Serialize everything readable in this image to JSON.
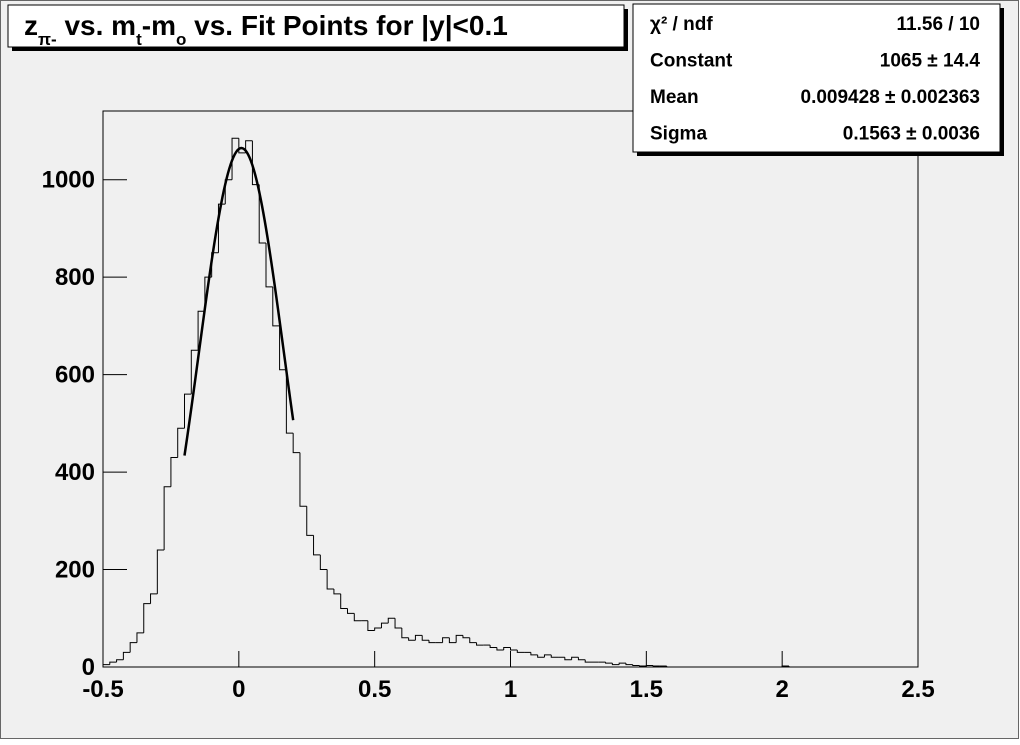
{
  "chart_data": {
    "type": "histogram",
    "title_parts": [
      "z",
      "π-",
      " vs. m",
      "t",
      "-m",
      "o",
      " vs. Fit Points for |y|<0.1"
    ],
    "stats": [
      [
        "χ² / ndf",
        "11.56 / 10"
      ],
      [
        "Constant",
        "1065 ± 14.4"
      ],
      [
        "Mean",
        "0.009428 ± 0.002363"
      ],
      [
        "Sigma",
        "0.1563 ± 0.0036"
      ]
    ],
    "bins": [
      -0.5,
      -0.475,
      -0.45,
      -0.425,
      -0.4,
      -0.375,
      -0.35,
      -0.325,
      -0.3,
      -0.275,
      -0.25,
      -0.225,
      -0.2,
      -0.175,
      -0.15,
      -0.125,
      -0.1,
      -0.075,
      -0.05,
      -0.025,
      0,
      0.025,
      0.05,
      0.075,
      0.1,
      0.125,
      0.15,
      0.175,
      0.2,
      0.225,
      0.25,
      0.275,
      0.3,
      0.325,
      0.35,
      0.375,
      0.4,
      0.425,
      0.45,
      0.475,
      0.5,
      0.525,
      0.55,
      0.575,
      0.6,
      0.625,
      0.65,
      0.675,
      0.7,
      0.725,
      0.75,
      0.775,
      0.8,
      0.825,
      0.85,
      0.875,
      0.9,
      0.925,
      0.95,
      0.975,
      1,
      1.025,
      1.05,
      1.075,
      1.1,
      1.125,
      1.15,
      1.175,
      1.2,
      1.225,
      1.25,
      1.275,
      1.3,
      1.325,
      1.35,
      1.375,
      1.4,
      1.425,
      1.45,
      1.475,
      1.5,
      1.525,
      1.55,
      1.575,
      1.6,
      1.625,
      1.65,
      1.675,
      1.7,
      1.725,
      1.75,
      1.775,
      1.8,
      1.825,
      1.85,
      1.875,
      1.9,
      1.925,
      1.95,
      1.975,
      2,
      2.025,
      2.05,
      2.075,
      2.1,
      2.125,
      2.15,
      2.175,
      2.2,
      2.225,
      2.25,
      2.275,
      2.3,
      2.325,
      2.35,
      2.375,
      2.4,
      2.425,
      2.45,
      2.475,
      2.5
    ],
    "values": [
      5,
      10,
      15,
      30,
      50,
      70,
      130,
      150,
      240,
      370,
      430,
      490,
      560,
      650,
      730,
      800,
      850,
      950,
      1000,
      1085,
      1055,
      1080,
      990,
      870,
      780,
      700,
      610,
      480,
      440,
      330,
      270,
      230,
      200,
      160,
      150,
      120,
      110,
      95,
      95,
      75,
      80,
      90,
      100,
      80,
      60,
      55,
      65,
      55,
      50,
      50,
      60,
      50,
      65,
      60,
      50,
      45,
      45,
      40,
      35,
      40,
      35,
      30,
      30,
      25,
      20,
      25,
      20,
      20,
      15,
      20,
      15,
      10,
      10,
      10,
      8,
      5,
      8,
      5,
      3,
      2,
      3,
      2,
      2,
      0,
      0,
      0,
      0,
      0,
      0,
      0,
      0,
      0,
      0,
      0,
      0,
      0,
      0,
      0,
      0,
      0,
      2,
      0,
      0,
      0,
      0,
      0,
      0,
      0,
      0,
      0,
      0,
      0,
      0,
      0,
      0,
      0,
      0,
      0,
      0,
      0
    ],
    "color": "#000000",
    "fit": {
      "range": [
        -0.2,
        0.2
      ],
      "constant": 1065,
      "mean": 0.009428,
      "sigma": 0.1563,
      "color": "#000000"
    },
    "xlim": [
      -0.5,
      2.5
    ],
    "xticks": [
      -0.5,
      0,
      0.5,
      1,
      1.5,
      2,
      2.5
    ],
    "ylim": [
      0,
      1141
    ],
    "yticks": [
      0,
      200,
      400,
      600,
      800,
      1000
    ]
  }
}
